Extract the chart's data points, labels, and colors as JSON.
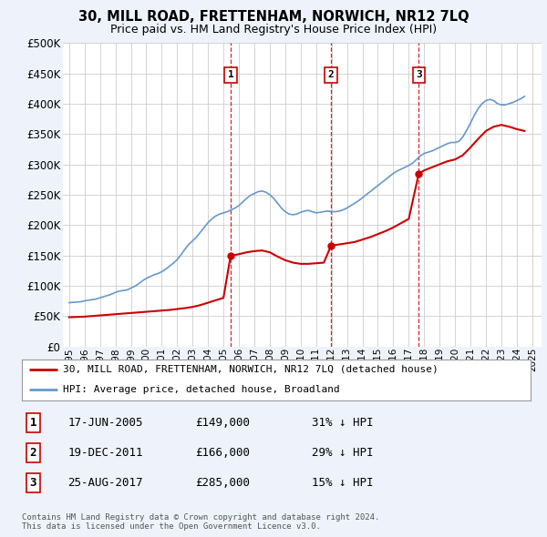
{
  "title": "30, MILL ROAD, FRETTENHAM, NORWICH, NR12 7LQ",
  "subtitle": "Price paid vs. HM Land Registry's House Price Index (HPI)",
  "fig_bg_color": "#eef3fb",
  "plot_bg_color": "#ffffff",
  "yticks": [
    0,
    50000,
    100000,
    150000,
    200000,
    250000,
    300000,
    350000,
    400000,
    450000,
    500000
  ],
  "ytick_labels": [
    "£0",
    "£50K",
    "£100K",
    "£150K",
    "£200K",
    "£250K",
    "£300K",
    "£350K",
    "£400K",
    "£450K",
    "£500K"
  ],
  "xmin": 1994.6,
  "xmax": 2025.6,
  "ymin": 0,
  "ymax": 500000,
  "sale_dates": [
    2005.46,
    2011.97,
    2017.65
  ],
  "sale_prices": [
    149000,
    166000,
    285000
  ],
  "sale_labels": [
    "1",
    "2",
    "3"
  ],
  "sale_date_strs": [
    "17-JUN-2005",
    "19-DEC-2011",
    "25-AUG-2017"
  ],
  "sale_price_strs": [
    "£149,000",
    "£166,000",
    "£285,000"
  ],
  "sale_hpi_strs": [
    "31% ↓ HPI",
    "29% ↓ HPI",
    "15% ↓ HPI"
  ],
  "red_line_color": "#cc0000",
  "blue_line_color": "#6699cc",
  "vline_color": "#cc0000",
  "legend_label_red": "30, MILL ROAD, FRETTENHAM, NORWICH, NR12 7LQ (detached house)",
  "legend_label_blue": "HPI: Average price, detached house, Broadland",
  "footnote": "Contains HM Land Registry data © Crown copyright and database right 2024.\nThis data is licensed under the Open Government Licence v3.0.",
  "hpi_x": [
    1995.0,
    1995.25,
    1995.5,
    1995.75,
    1996.0,
    1996.25,
    1996.5,
    1996.75,
    1997.0,
    1997.25,
    1997.5,
    1997.75,
    1998.0,
    1998.25,
    1998.5,
    1998.75,
    1999.0,
    1999.25,
    1999.5,
    1999.75,
    2000.0,
    2000.25,
    2000.5,
    2000.75,
    2001.0,
    2001.25,
    2001.5,
    2001.75,
    2002.0,
    2002.25,
    2002.5,
    2002.75,
    2003.0,
    2003.25,
    2003.5,
    2003.75,
    2004.0,
    2004.25,
    2004.5,
    2004.75,
    2005.0,
    2005.25,
    2005.5,
    2005.75,
    2006.0,
    2006.25,
    2006.5,
    2006.75,
    2007.0,
    2007.25,
    2007.5,
    2007.75,
    2008.0,
    2008.25,
    2008.5,
    2008.75,
    2009.0,
    2009.25,
    2009.5,
    2009.75,
    2010.0,
    2010.25,
    2010.5,
    2010.75,
    2011.0,
    2011.25,
    2011.5,
    2011.75,
    2012.0,
    2012.25,
    2012.5,
    2012.75,
    2013.0,
    2013.25,
    2013.5,
    2013.75,
    2014.0,
    2014.25,
    2014.5,
    2014.75,
    2015.0,
    2015.25,
    2015.5,
    2015.75,
    2016.0,
    2016.25,
    2016.5,
    2016.75,
    2017.0,
    2017.25,
    2017.5,
    2017.75,
    2018.0,
    2018.25,
    2018.5,
    2018.75,
    2019.0,
    2019.25,
    2019.5,
    2019.75,
    2020.0,
    2020.25,
    2020.5,
    2020.75,
    2021.0,
    2021.25,
    2021.5,
    2021.75,
    2022.0,
    2022.25,
    2022.5,
    2022.75,
    2023.0,
    2023.25,
    2023.5,
    2023.75,
    2024.0,
    2024.25,
    2024.5
  ],
  "hpi_y": [
    72000,
    72500,
    73000,
    73500,
    75000,
    76000,
    77000,
    78000,
    80000,
    82000,
    84000,
    86000,
    89000,
    91000,
    92000,
    93000,
    96000,
    99000,
    103000,
    108000,
    112000,
    115000,
    118000,
    120000,
    123000,
    127000,
    132000,
    137000,
    143000,
    151000,
    160000,
    168000,
    174000,
    180000,
    188000,
    196000,
    204000,
    210000,
    215000,
    218000,
    220000,
    222000,
    225000,
    228000,
    232000,
    238000,
    244000,
    249000,
    252000,
    255000,
    256000,
    254000,
    250000,
    244000,
    236000,
    228000,
    222000,
    218000,
    217000,
    218000,
    221000,
    223000,
    224000,
    222000,
    220000,
    221000,
    222000,
    223000,
    222000,
    222000,
    223000,
    225000,
    228000,
    232000,
    236000,
    240000,
    245000,
    250000,
    255000,
    260000,
    265000,
    270000,
    275000,
    280000,
    285000,
    289000,
    292000,
    295000,
    298000,
    302000,
    308000,
    314000,
    318000,
    320000,
    322000,
    325000,
    328000,
    331000,
    334000,
    336000,
    336000,
    338000,
    345000,
    356000,
    368000,
    381000,
    392000,
    400000,
    405000,
    407000,
    405000,
    400000,
    398000,
    398000,
    400000,
    402000,
    405000,
    408000,
    412000
  ],
  "red_x": [
    1995.0,
    1995.5,
    1996.0,
    1996.5,
    1997.0,
    1997.5,
    1998.0,
    1998.5,
    1999.0,
    1999.5,
    2000.0,
    2000.5,
    2001.0,
    2001.5,
    2002.0,
    2002.5,
    2003.0,
    2003.5,
    2004.0,
    2004.5,
    2005.0,
    2005.46,
    2005.47,
    2006.0,
    2006.5,
    2007.0,
    2007.5,
    2008.0,
    2008.5,
    2009.0,
    2009.5,
    2010.0,
    2010.5,
    2011.0,
    2011.5,
    2011.97,
    2011.98,
    2012.5,
    2013.0,
    2013.5,
    2014.0,
    2014.5,
    2015.0,
    2015.5,
    2016.0,
    2016.5,
    2017.0,
    2017.65,
    2017.66,
    2018.0,
    2018.5,
    2019.0,
    2019.5,
    2020.0,
    2020.5,
    2021.0,
    2021.5,
    2022.0,
    2022.5,
    2023.0,
    2023.5,
    2024.0,
    2024.5
  ],
  "red_y": [
    48000,
    48500,
    49000,
    50000,
    51000,
    52000,
    53000,
    54000,
    55000,
    56000,
    57000,
    58000,
    59000,
    60000,
    61500,
    63000,
    65000,
    68000,
    72000,
    76000,
    80000,
    149000,
    149000,
    152000,
    155000,
    157000,
    158000,
    155000,
    148000,
    142000,
    138000,
    136000,
    136000,
    137000,
    138000,
    166000,
    166000,
    168000,
    170000,
    172000,
    176000,
    180000,
    185000,
    190000,
    196000,
    203000,
    210000,
    285000,
    285000,
    290000,
    295000,
    300000,
    305000,
    308000,
    315000,
    328000,
    342000,
    355000,
    362000,
    365000,
    362000,
    358000,
    355000
  ]
}
